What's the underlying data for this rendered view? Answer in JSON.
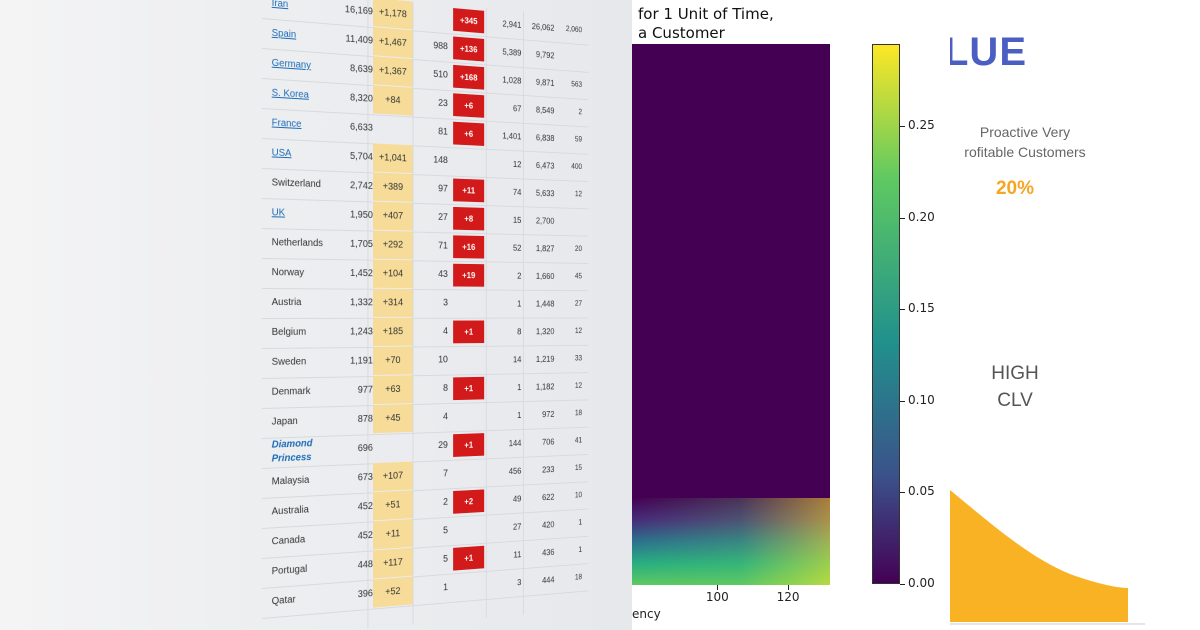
{
  "table": {
    "rows": [
      {
        "country": "Iran",
        "link": true,
        "total": "16,169",
        "new_cases": "+1,178",
        "deaths": "",
        "new_deaths": "+345",
        "recovered": "2,941",
        "active": "26,062",
        "serious": "2,060"
      },
      {
        "country": "Spain",
        "link": true,
        "total": "11,409",
        "new_cases": "+1,467",
        "deaths": "988",
        "new_deaths": "+136",
        "recovered": "5,389",
        "active": "9,792",
        "serious": ""
      },
      {
        "country": "Germany",
        "link": true,
        "total": "8,639",
        "new_cases": "+1,367",
        "deaths": "510",
        "new_deaths": "+168",
        "recovered": "1,028",
        "active": "9,871",
        "serious": "563"
      },
      {
        "country": "S. Korea",
        "link": true,
        "total": "8,320",
        "new_cases": "+84",
        "deaths": "23",
        "new_deaths": "+6",
        "recovered": "67",
        "active": "8,549",
        "serious": "2"
      },
      {
        "country": "France",
        "link": true,
        "total": "6,633",
        "new_cases": "",
        "deaths": "81",
        "new_deaths": "+6",
        "recovered": "1,401",
        "active": "6,838",
        "serious": "59"
      },
      {
        "country": "USA",
        "link": true,
        "total": "5,704",
        "new_cases": "+1,041",
        "deaths": "148",
        "new_deaths": "",
        "recovered": "12",
        "active": "6,473",
        "serious": "400"
      },
      {
        "country": "Switzerland",
        "link": false,
        "total": "2,742",
        "new_cases": "+389",
        "deaths": "97",
        "new_deaths": "+11",
        "recovered": "74",
        "active": "5,633",
        "serious": "12"
      },
      {
        "country": "UK",
        "link": true,
        "total": "1,950",
        "new_cases": "+407",
        "deaths": "27",
        "new_deaths": "+8",
        "recovered": "15",
        "active": "2,700",
        "serious": ""
      },
      {
        "country": "Netherlands",
        "link": false,
        "total": "1,705",
        "new_cases": "+292",
        "deaths": "71",
        "new_deaths": "+16",
        "recovered": "52",
        "active": "1,827",
        "serious": "20"
      },
      {
        "country": "Norway",
        "link": false,
        "total": "1,452",
        "new_cases": "+104",
        "deaths": "43",
        "new_deaths": "+19",
        "recovered": "2",
        "active": "1,660",
        "serious": "45"
      },
      {
        "country": "Austria",
        "link": false,
        "total": "1,332",
        "new_cases": "+314",
        "deaths": "3",
        "new_deaths": "",
        "recovered": "1",
        "active": "1,448",
        "serious": "27"
      },
      {
        "country": "Belgium",
        "link": false,
        "total": "1,243",
        "new_cases": "+185",
        "deaths": "4",
        "new_deaths": "+1",
        "recovered": "8",
        "active": "1,320",
        "serious": "12"
      },
      {
        "country": "Sweden",
        "link": false,
        "total": "1,191",
        "new_cases": "+70",
        "deaths": "10",
        "new_deaths": "",
        "recovered": "14",
        "active": "1,219",
        "serious": "33"
      },
      {
        "country": "Denmark",
        "link": false,
        "total": "977",
        "new_cases": "+63",
        "deaths": "8",
        "new_deaths": "+1",
        "recovered": "1",
        "active": "1,182",
        "serious": "12"
      },
      {
        "country": "Japan",
        "link": false,
        "total": "878",
        "new_cases": "+45",
        "deaths": "4",
        "new_deaths": "",
        "recovered": "1",
        "active": "972",
        "serious": "18"
      },
      {
        "country": "Diamond Princess",
        "link": true,
        "total": "696",
        "new_cases": "",
        "deaths": "29",
        "new_deaths": "+1",
        "recovered": "144",
        "active": "706",
        "serious": "41"
      },
      {
        "country": "Malaysia",
        "link": false,
        "total": "673",
        "new_cases": "+107",
        "deaths": "7",
        "new_deaths": "",
        "recovered": "456",
        "active": "233",
        "serious": "15"
      },
      {
        "country": "Australia",
        "link": false,
        "total": "452",
        "new_cases": "+51",
        "deaths": "2",
        "new_deaths": "+2",
        "recovered": "49",
        "active": "622",
        "serious": "10"
      },
      {
        "country": "Canada",
        "link": false,
        "total": "452",
        "new_cases": "+11",
        "deaths": "5",
        "new_deaths": "",
        "recovered": "27",
        "active": "420",
        "serious": "1"
      },
      {
        "country": "Portugal",
        "link": false,
        "total": "448",
        "new_cases": "+117",
        "deaths": "5",
        "new_deaths": "+1",
        "recovered": "11",
        "active": "436",
        "serious": "1"
      },
      {
        "country": "Qatar",
        "link": false,
        "total": "396",
        "new_cases": "+52",
        "deaths": "1",
        "new_deaths": "",
        "recovered": "3",
        "active": "444",
        "serious": "18"
      }
    ]
  },
  "chart_data": {
    "type": "heatmap",
    "title": "for 1 Unit of Time,\na Customer",
    "xlabel": "ency",
    "x_ticks": [
      "100",
      "120"
    ],
    "colorbar_ticks": [
      "0.25",
      "0.20",
      "0.15",
      "0.10",
      "0.05",
      "0.00"
    ],
    "colorbar_range": [
      0,
      0.295
    ],
    "colormap": "viridis"
  },
  "panel": {
    "heading": "LUE",
    "segment": "Proactive Very\nrofitable Customers",
    "percent": "20%",
    "clv": "HIGH\nCLV",
    "curve_color": "#f9b224",
    "heading_color": "#4a5fc1"
  }
}
